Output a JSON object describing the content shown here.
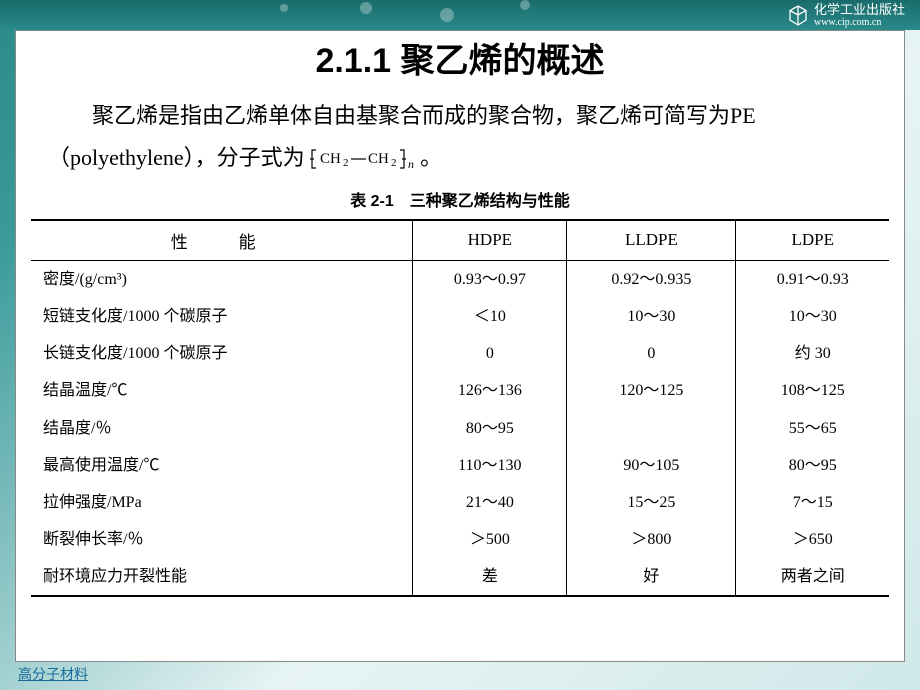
{
  "publisher": {
    "name": "化学工业出版社",
    "url": "www.cip.com.cn"
  },
  "title": "2.1.1 聚乙烯的概述",
  "intro_before": "聚乙烯是指由乙烯单体自由基聚合而成的聚合物，聚乙烯可简写为PE（polyethylene），分子式为 ",
  "formula_html": "⟮CH₂—CH₂⟯<sub style='font-style:italic'>n</sub>",
  "intro_after": "。",
  "table": {
    "caption": "表 2-1　三种聚乙烯结构与性能",
    "columns": [
      "性　能",
      "HDPE",
      "LLDPE",
      "LDPE"
    ],
    "rows": [
      [
        "密度/(g/cm³)",
        "0.93～0.97",
        "0.92～0.935",
        "0.91～0.93"
      ],
      [
        "短链支化度/1000 个碳原子",
        "＜10",
        "10～30",
        "10～30"
      ],
      [
        "长链支化度/1000 个碳原子",
        "0",
        "0",
        "约 30"
      ],
      [
        "结晶温度/℃",
        "126～136",
        "120～125",
        "108～125"
      ],
      [
        "结晶度/％",
        "80～95",
        "",
        "55～65"
      ],
      [
        "最高使用温度/℃",
        "110～130",
        "90～105",
        "80～95"
      ],
      [
        "拉伸强度/MPa",
        "21～40",
        "15～25",
        "7～15"
      ],
      [
        "断裂伸长率/％",
        "＞500",
        "＞800",
        "＞650"
      ],
      [
        "耐环境应力开裂性能",
        "差",
        "好",
        "两者之间"
      ]
    ]
  },
  "footer_link": "高分子材料",
  "colors": {
    "header_bg": "#2a8a8a",
    "link_color": "#1a6b9a",
    "card_bg": "#ffffff"
  }
}
